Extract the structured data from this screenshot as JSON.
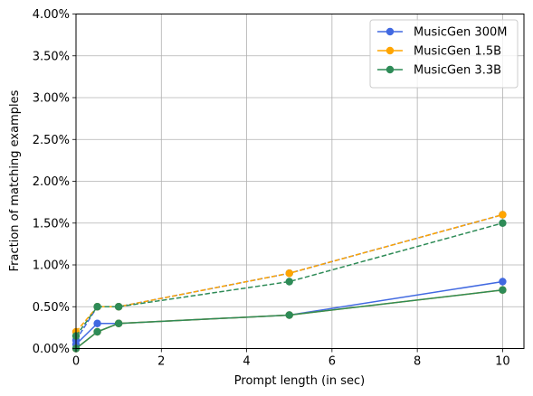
{
  "chart_data": {
    "type": "line",
    "title": "",
    "xlabel": "Prompt length (in sec)",
    "ylabel": "Fraction of matching examples",
    "xlim": [
      0,
      10.5
    ],
    "ylim": [
      0,
      4.0
    ],
    "x_ticks": [
      0,
      2,
      4,
      6,
      8,
      10
    ],
    "x_tick_labels": [
      "0",
      "2",
      "4",
      "6",
      "8",
      "10"
    ],
    "y_ticks": [
      0,
      0.5,
      1.0,
      1.5,
      2.0,
      2.5,
      3.0,
      3.5,
      4.0
    ],
    "y_tick_labels": [
      "0.00%",
      "0.50%",
      "1.00%",
      "1.50%",
      "2.00%",
      "2.50%",
      "3.00%",
      "3.50%",
      "4.00%"
    ],
    "grid": true,
    "legend_position": "top-right",
    "series": [
      {
        "name": "MusicGen 300M",
        "color": "#4169e1",
        "style": "solid",
        "x": [
          0,
          0.5,
          1,
          5,
          10
        ],
        "y": [
          0.05,
          0.3,
          0.3,
          0.4,
          0.8
        ],
        "in_legend": true
      },
      {
        "name": "MusicGen 1.5B",
        "color": "#ffa500",
        "style": "solid",
        "x": [
          0,
          0.5,
          1,
          5,
          10
        ],
        "y": [
          0.0,
          0.2,
          0.3,
          0.4,
          0.7
        ],
        "in_legend": true
      },
      {
        "name": "MusicGen 3.3B",
        "color": "#2e8b57",
        "style": "solid",
        "x": [
          0,
          0.5,
          1,
          5,
          10
        ],
        "y": [
          0.0,
          0.2,
          0.3,
          0.4,
          0.7
        ],
        "in_legend": true
      },
      {
        "name": "",
        "color": "#4169e1",
        "style": "dashed",
        "x": [
          0,
          0.5,
          1,
          5,
          10
        ],
        "y": [
          0.1,
          0.5,
          0.5,
          0.9,
          1.6
        ],
        "in_legend": false
      },
      {
        "name": "",
        "color": "#ffa500",
        "style": "dashed",
        "x": [
          0,
          0.5,
          1,
          5,
          10
        ],
        "y": [
          0.2,
          0.5,
          0.5,
          0.9,
          1.6
        ],
        "in_legend": false
      },
      {
        "name": "",
        "color": "#2e8b57",
        "style": "dashed",
        "x": [
          0,
          0.5,
          1,
          5,
          10
        ],
        "y": [
          0.15,
          0.5,
          0.5,
          0.8,
          1.5
        ],
        "in_legend": false
      }
    ]
  }
}
